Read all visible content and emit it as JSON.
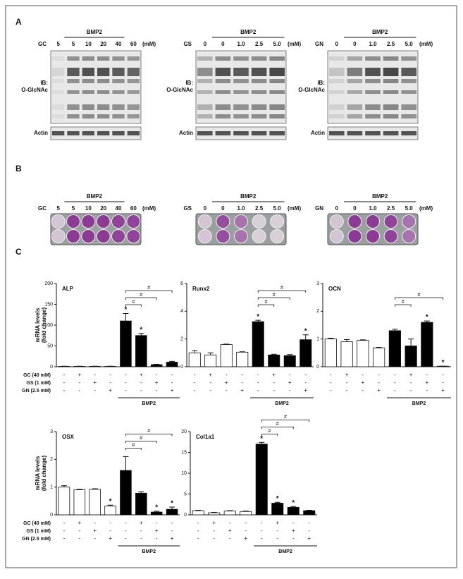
{
  "panel_labels": [
    "A",
    "B",
    "C"
  ],
  "blots": [
    {
      "agent": "GC",
      "bmp": "BMP2",
      "doses": [
        "5",
        "5",
        "10",
        "20",
        "40",
        "60"
      ],
      "unit": "(mM)",
      "ib": "IB:",
      "target": "O-GlcNAc",
      "loading": "Actin"
    },
    {
      "agent": "GS",
      "bmp": "BMP2",
      "doses": [
        "0",
        "0",
        "1.0",
        "2.5",
        "5.0"
      ],
      "unit": "(mM)",
      "ib": "IB:",
      "target": "O-GlcNAc",
      "loading": "Actin"
    },
    {
      "agent": "GN",
      "bmp": "BMP2",
      "doses": [
        "0",
        "0",
        "1.0",
        "2.5",
        "5.0"
      ],
      "unit": "(mM)",
      "ib": "IB:",
      "target": "O-GlcNAc",
      "loading": "Actin"
    }
  ],
  "plates": [
    {
      "agent": "GC",
      "bmp": "BMP2",
      "doses": [
        "5",
        "5",
        "10",
        "20",
        "40",
        "60"
      ],
      "unit": "(mM)"
    },
    {
      "agent": "GS",
      "bmp": "BMP2",
      "doses": [
        "0",
        "0",
        "1.0",
        "2.5",
        "5.0"
      ],
      "unit": "(mM)"
    },
    {
      "agent": "GN",
      "bmp": "BMP2",
      "doses": [
        "0",
        "0",
        "1.0",
        "2.5",
        "5.0"
      ],
      "unit": "(mM)"
    }
  ],
  "treatments": {
    "names": [
      "GC (40 mM)",
      "GS (1 mM)",
      "GN (2.5 mM)"
    ],
    "signs": [
      [
        "-",
        "+",
        "-",
        "-",
        "-",
        "+",
        "-",
        "-"
      ],
      [
        "-",
        "-",
        "+",
        "-",
        "-",
        "-",
        "+",
        "-"
      ],
      [
        "-",
        "-",
        "-",
        "+",
        "-",
        "-",
        "-",
        "+"
      ]
    ],
    "group": "BMP2"
  },
  "chart_data": [
    {
      "type": "bar",
      "title": "ALP",
      "ylabel": [
        "mRNA levels",
        "(fold change)"
      ],
      "values": [
        1,
        1,
        1,
        1,
        110,
        75,
        5,
        11
      ],
      "errors": [
        0.3,
        0.3,
        0.3,
        0.3,
        18,
        5,
        1,
        2
      ],
      "colors": [
        "#ffffff",
        "#ffffff",
        "#ffffff",
        "#ffffff",
        "#000000",
        "#000000",
        "#000000",
        "#000000"
      ],
      "ylim": [
        0,
        200
      ],
      "yticks": [
        0,
        50,
        100,
        150,
        200
      ],
      "stars": [
        4,
        5
      ],
      "star_label": "*",
      "brackets": [
        {
          "to": 5,
          "label": "#"
        },
        {
          "to": 6,
          "label": "#"
        },
        {
          "to": 7,
          "label": "#"
        }
      ]
    },
    {
      "type": "bar",
      "title": "Runx2",
      "values": [
        1.0,
        0.85,
        1.6,
        1.05,
        3.25,
        0.85,
        0.8,
        1.95
      ],
      "errors": [
        0.15,
        0.15,
        0.03,
        0.03,
        0.1,
        0.05,
        0.08,
        0.35
      ],
      "colors": [
        "#ffffff",
        "#ffffff",
        "#ffffff",
        "#ffffff",
        "#000000",
        "#000000",
        "#000000",
        "#000000"
      ],
      "ylim": [
        0,
        6
      ],
      "yticks": [
        0,
        2,
        4,
        6
      ],
      "stars": [
        4,
        7
      ],
      "star_label": "*",
      "brackets": [
        {
          "to": 5,
          "label": "#"
        },
        {
          "to": 6,
          "label": "#"
        },
        {
          "to": 7,
          "label": "#"
        }
      ]
    },
    {
      "type": "bar",
      "title": "OCN",
      "values": [
        1.0,
        0.9,
        0.95,
        0.68,
        1.3,
        0.75,
        1.6,
        0.02
      ],
      "errors": [
        0.03,
        0.08,
        0.02,
        0.02,
        0.05,
        0.25,
        0.05,
        0
      ],
      "colors": [
        "#ffffff",
        "#ffffff",
        "#ffffff",
        "#ffffff",
        "#000000",
        "#000000",
        "#000000",
        "#000000"
      ],
      "ylim": [
        0,
        3
      ],
      "yticks": [
        0,
        1,
        2,
        3
      ],
      "stars": [
        6,
        7
      ],
      "star_label": "*",
      "brackets": [
        {
          "to": 5,
          "label": "#"
        },
        {
          "to": 7,
          "label": "#"
        }
      ]
    },
    {
      "type": "bar",
      "title": "OSX",
      "ylabel": [
        "mRNA levels",
        "(fold change)"
      ],
      "values": [
        1.0,
        0.9,
        0.92,
        0.32,
        1.6,
        0.78,
        0.1,
        0.2
      ],
      "errors": [
        0.05,
        0.02,
        0.02,
        0.03,
        0.5,
        0.05,
        0.03,
        0.08
      ],
      "colors": [
        "#ffffff",
        "#ffffff",
        "#ffffff",
        "#ffffff",
        "#000000",
        "#000000",
        "#000000",
        "#000000"
      ],
      "ylim": [
        0,
        3
      ],
      "yticks": [
        0,
        1,
        2,
        3
      ],
      "stars": [
        3,
        6,
        7
      ],
      "star_label": "*",
      "brackets": [
        {
          "to": 5,
          "label": "#"
        },
        {
          "to": 6,
          "label": "#"
        },
        {
          "to": 7,
          "label": "#"
        }
      ]
    },
    {
      "type": "bar",
      "title": "Col1a1",
      "values": [
        1,
        0.5,
        0.9,
        0.8,
        17,
        2.8,
        1.8,
        1
      ],
      "errors": [
        0.1,
        0.1,
        0.1,
        0.1,
        0.4,
        0.2,
        0.2,
        0.1
      ],
      "colors": [
        "#ffffff",
        "#ffffff",
        "#ffffff",
        "#ffffff",
        "#000000",
        "#000000",
        "#000000",
        "#000000"
      ],
      "ylim": [
        0,
        20
      ],
      "yticks": [
        0,
        5,
        10,
        15,
        20
      ],
      "stars": [
        4,
        5,
        6
      ],
      "star_label": "*",
      "brackets": [
        {
          "to": 5,
          "label": "#"
        },
        {
          "to": 6,
          "label": "#"
        },
        {
          "to": 7,
          "label": "#"
        }
      ]
    }
  ]
}
